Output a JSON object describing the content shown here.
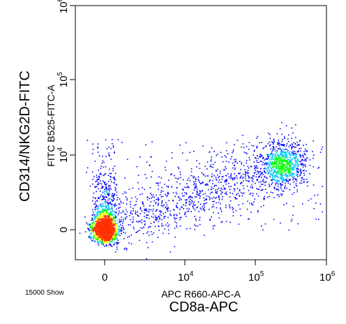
{
  "chart_data": {
    "type": "scatter",
    "xlabel": "APC R660-APC-A",
    "ylabel": "FITC B525-FITC-A",
    "xlabel_outer": "CD8a-APC",
    "ylabel_outer": "CD314/NKG2D-FITC",
    "footnote": "15000 Show",
    "x_scale": "biexponential",
    "y_scale": "biexponential",
    "xlim": [
      -300,
      1000000
    ],
    "ylim": [
      -300,
      1000000
    ],
    "x_ticks": [
      {
        "value": 0,
        "base": "0",
        "exp": ""
      },
      {
        "value": 10000,
        "base": "10",
        "exp": "4"
      },
      {
        "value": 100000,
        "base": "10",
        "exp": "5"
      },
      {
        "value": 1000000,
        "base": "10",
        "exp": "6"
      }
    ],
    "y_ticks": [
      {
        "value": 0,
        "base": "0",
        "exp": ""
      },
      {
        "value": 10000,
        "base": "10",
        "exp": "4"
      },
      {
        "value": 100000,
        "base": "10",
        "exp": "5"
      },
      {
        "value": 1000000,
        "base": "10",
        "exp": "6"
      }
    ],
    "event_count": 15000,
    "populations": [
      {
        "center_x": 0,
        "center_y": 0,
        "description": "double-negative, dense"
      },
      {
        "center_x": 0,
        "center_y": 3000,
        "description": "FITC-low smear"
      },
      {
        "center_x": 250000,
        "center_y": 3500,
        "description": "CD8a+ NKG2D+"
      }
    ],
    "colors": {
      "density_low": "#0000ff",
      "density_mid": "#00c8ff",
      "density_high_1": "#00ff00",
      "density_high_2": "#ffff00",
      "density_peak": "#ff3000",
      "axis": "#000000"
    }
  }
}
